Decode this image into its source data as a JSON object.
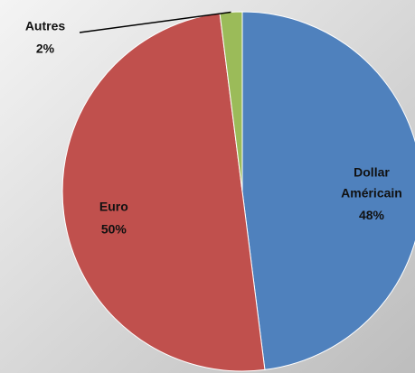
{
  "chart_data": {
    "type": "pie",
    "categories": [
      "Dollar Américain",
      "Euro",
      "Autres"
    ],
    "values": [
      48,
      50,
      2
    ],
    "value_labels": [
      "48%",
      "50%",
      "2%"
    ],
    "colors": [
      "#4f81bd",
      "#c0504d",
      "#9bbb59"
    ]
  }
}
